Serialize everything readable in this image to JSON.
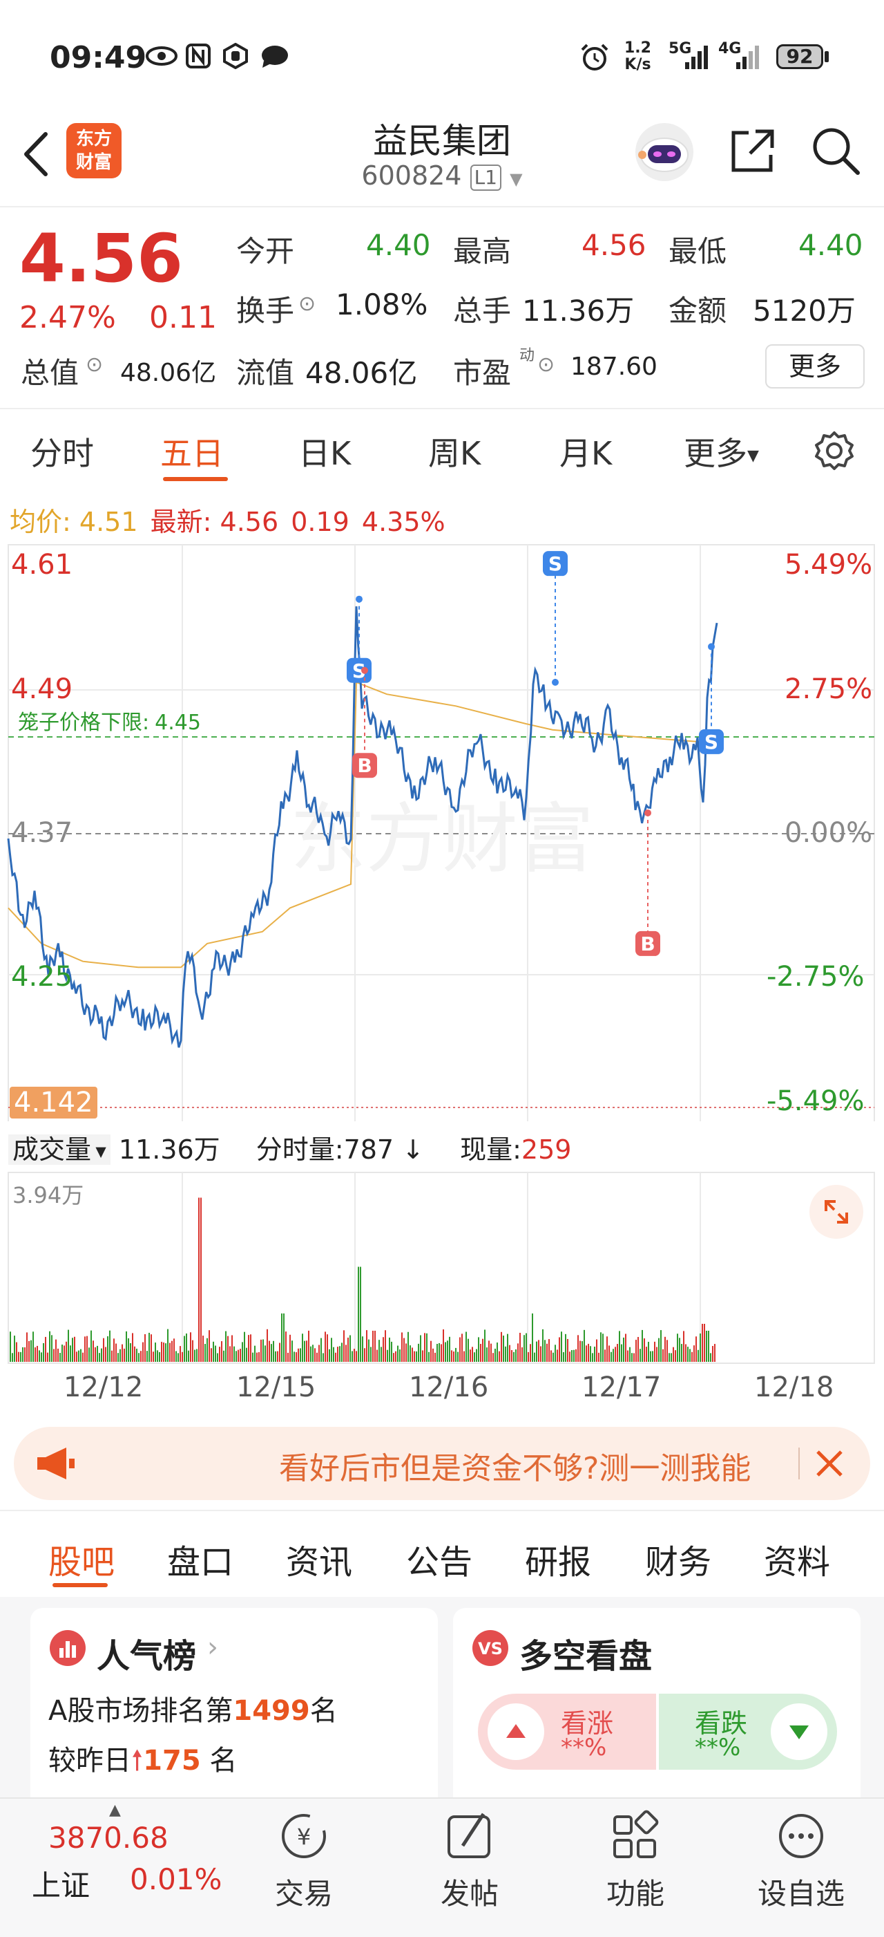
{
  "status_bar": {
    "time": "09:49",
    "net_speed_top": "1.2",
    "net_speed_bottom": "K/s",
    "net1": "5G",
    "net2": "4G",
    "battery": "92"
  },
  "header": {
    "logo_line1": "东方",
    "logo_line2": "财富",
    "stock_name": "益民集团",
    "stock_code": "600824",
    "level": "L1"
  },
  "quote": {
    "price": "4.56",
    "change_pct": "2.47%",
    "change": "0.11",
    "fields": [
      {
        "label": "今开",
        "value": "4.40"
      },
      {
        "label": "最高",
        "value": "4.56"
      },
      {
        "label": "最低",
        "value": "4.40"
      },
      {
        "label": "换手",
        "value": "1.08%"
      },
      {
        "label": "总手",
        "value": "11.36万"
      },
      {
        "label": "金额",
        "value": "5120万"
      },
      {
        "label": "总值",
        "value": "48.06亿"
      },
      {
        "label": "流值",
        "value": "48.06亿"
      },
      {
        "label": "市盈",
        "value": "187.60",
        "sup": "动"
      }
    ],
    "more_button": "更多"
  },
  "chart_tabs": {
    "items": [
      "分时",
      "五日",
      "日K",
      "周K",
      "月K",
      "更多"
    ],
    "active": "五日"
  },
  "info_line": {
    "avg_label": "均价:",
    "avg_value": "4.51",
    "latest_label": "最新:",
    "latest_value": "4.56",
    "latest_change": "0.19",
    "latest_pct": "4.35%"
  },
  "price_chart": {
    "left_ticks": [
      "4.61",
      "4.49",
      "4.37",
      "4.25",
      "4.142"
    ],
    "right_ticks": [
      "5.49%",
      "2.75%",
      "0.00%",
      "-2.75%",
      "-5.49%"
    ],
    "cage_label": "笼子价格下限:",
    "cage_value": "4.45",
    "watermark": "东方财富",
    "marker_b": "B",
    "marker_s": "S"
  },
  "volume_bar": {
    "label": "成交量",
    "total": "11.36万",
    "tick_label": "分时量:",
    "tick_value": "787",
    "current_label": "现量:",
    "current_value": "259",
    "max_label": "3.94万"
  },
  "x_axis": {
    "dates": [
      "12/12",
      "12/15",
      "12/16",
      "12/17",
      "12/18"
    ]
  },
  "banner": {
    "text": "看好后市但是资金不够?测一测我能"
  },
  "content_tabs": {
    "items": [
      "股吧",
      "盘口",
      "资讯",
      "公告",
      "研报",
      "财务",
      "资料"
    ],
    "active": "股吧"
  },
  "popularity": {
    "title": "人气榜",
    "line1_prefix": "A股市场排名第",
    "rank": "1499",
    "line1_suffix": "名",
    "line2_prefix": "较昨日",
    "rank_change": "175",
    "line2_suffix": "名"
  },
  "sentiment": {
    "title": "多空看盘",
    "bull_label": "看涨",
    "bull_value": "**%",
    "bear_label": "看跌",
    "bear_value": "**%"
  },
  "bottom_nav": {
    "index_value": "3870.68",
    "index_name": "上证",
    "index_change": "0.01%",
    "items": [
      "交易",
      "发帖",
      "功能",
      "设自选"
    ]
  },
  "colors": {
    "up": "#d9312b",
    "down": "#2e9a2e",
    "accent": "#f05a28",
    "price_line": "#2e6bb8",
    "avg_line": "#e8b048"
  }
}
